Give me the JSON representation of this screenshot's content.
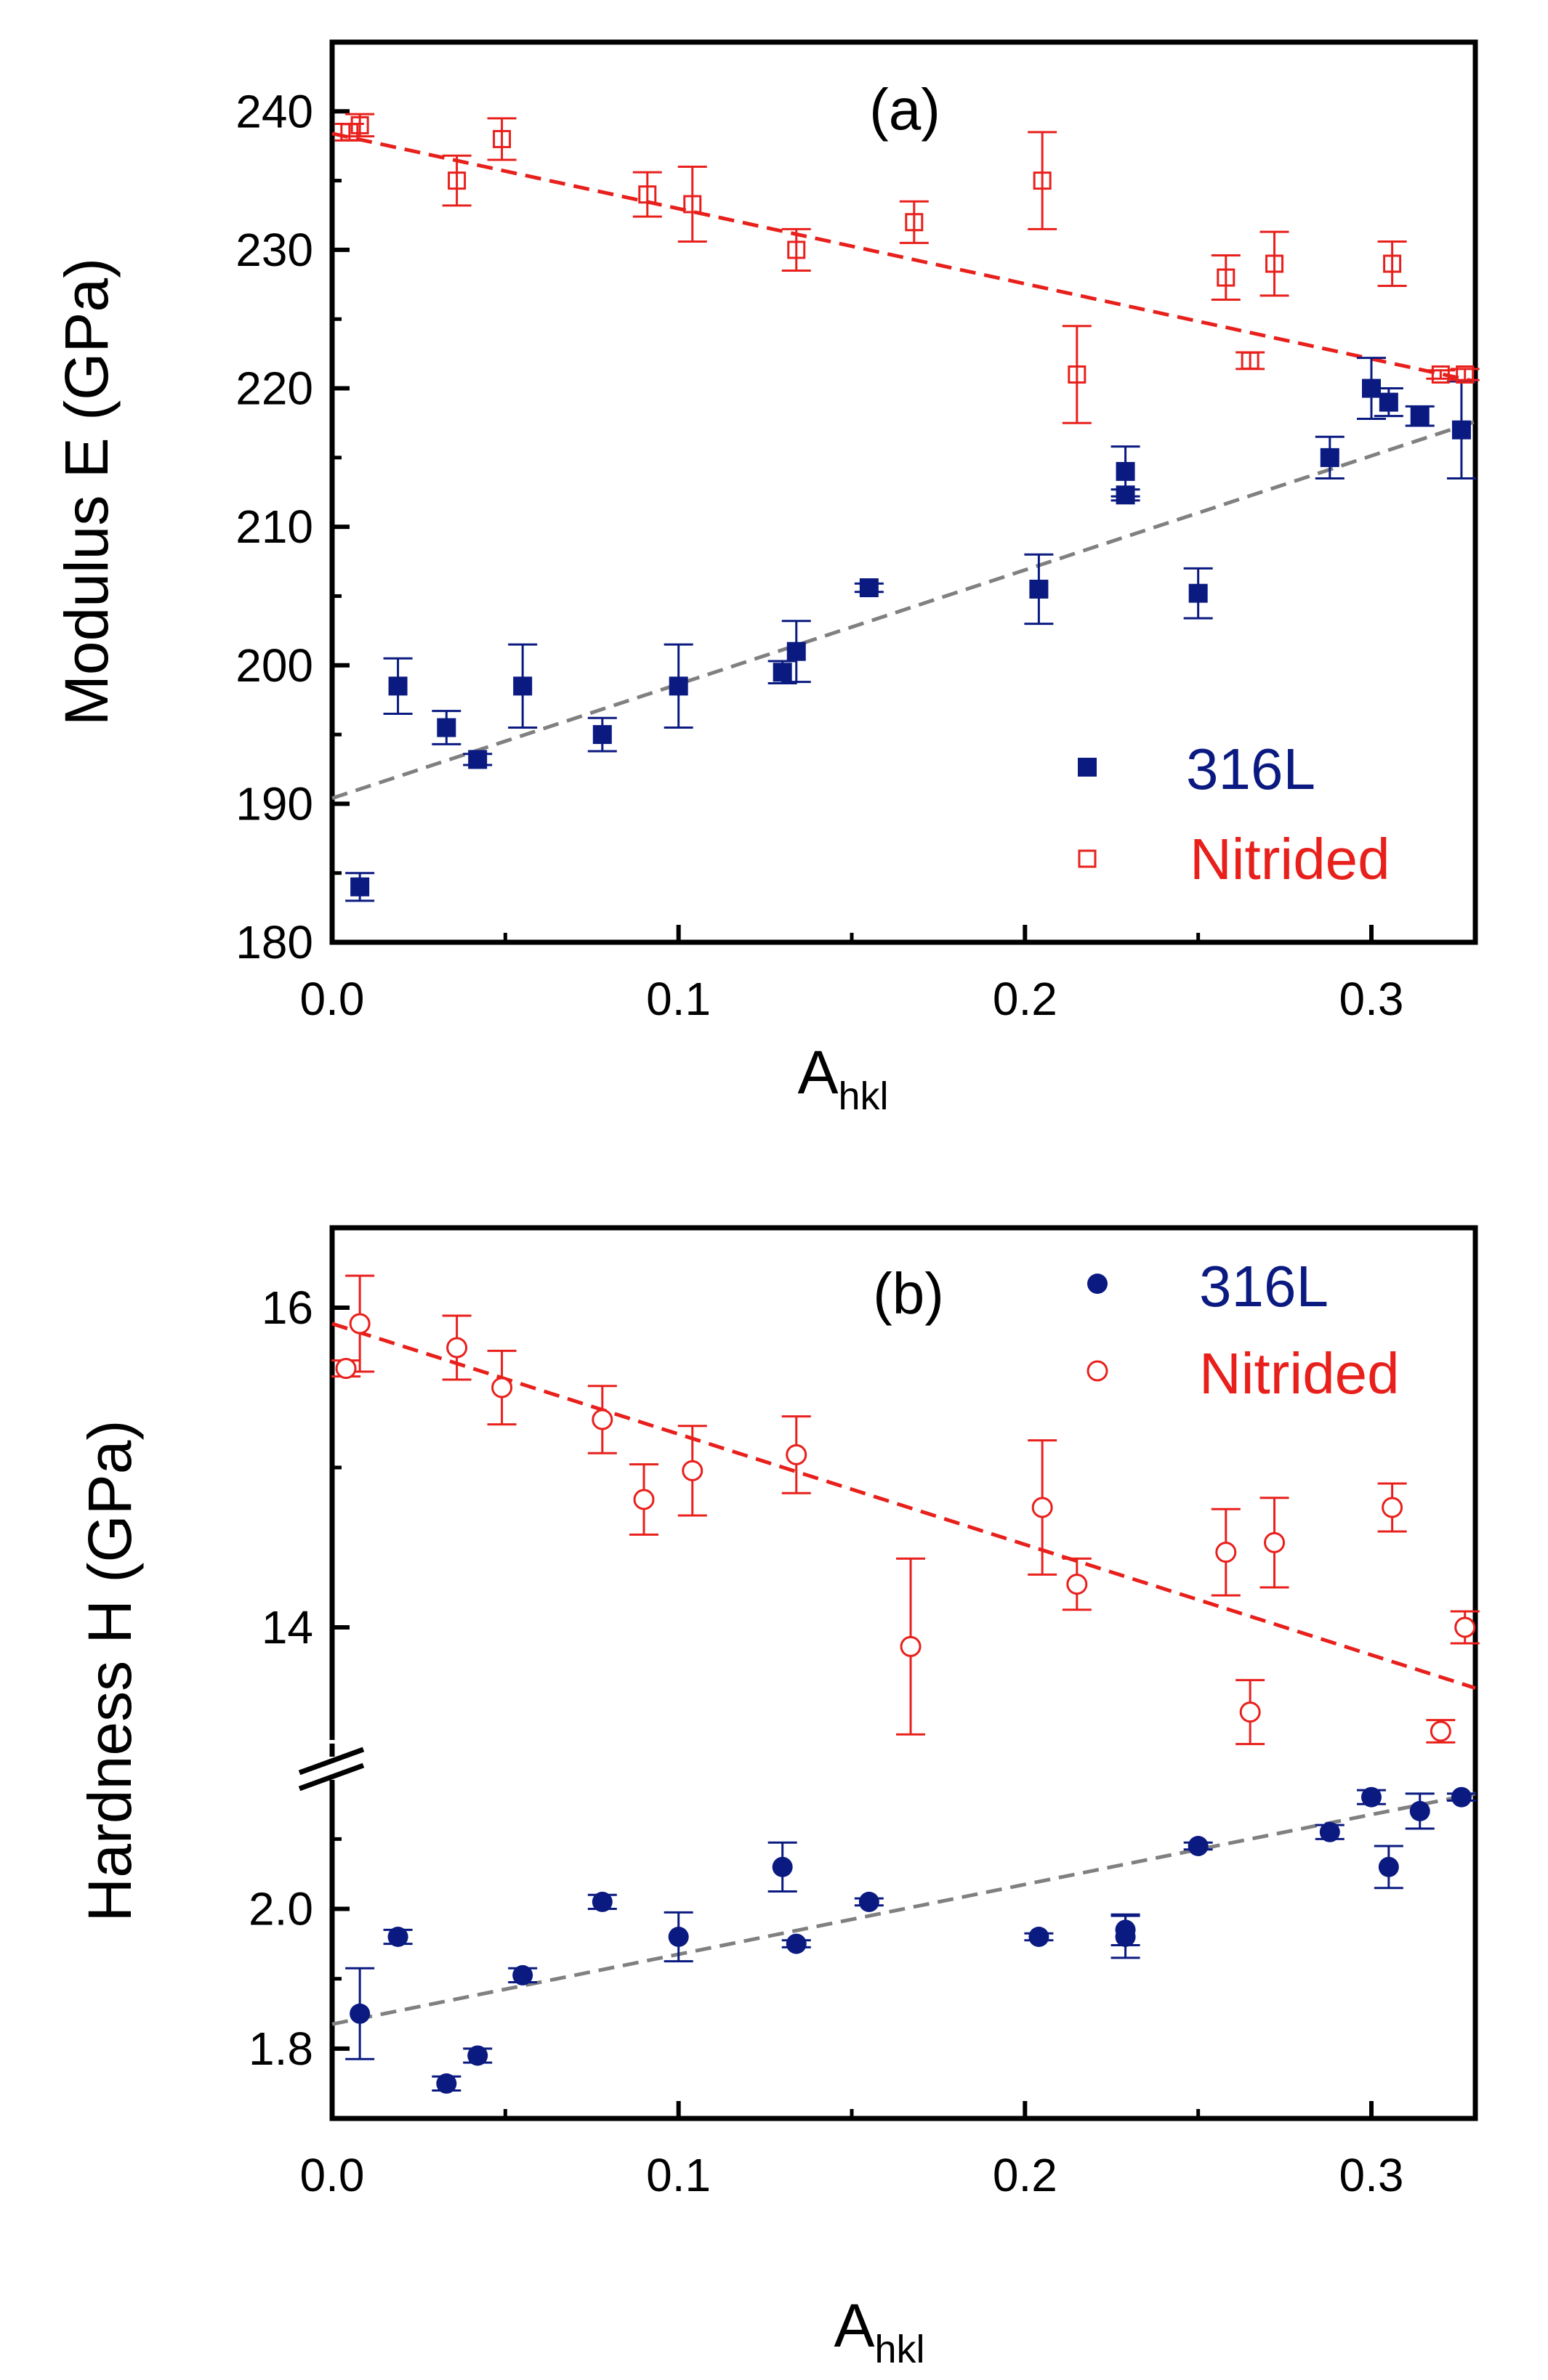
{
  "chart_data": [
    {
      "id": "a",
      "type": "scatter",
      "panel_label": "(a)",
      "ylabel": "Modulus E (GPa)",
      "xlabel": "A",
      "xlabel_sub": "hkl",
      "xlim": [
        0.0,
        0.33
      ],
      "ylim": [
        180,
        245
      ],
      "xticks": [
        0.0,
        0.1,
        0.2,
        0.3
      ],
      "xtick_labels": [
        "0.0",
        "0.1",
        "0.2",
        "0.3"
      ],
      "yticks": [
        180,
        190,
        200,
        210,
        220,
        230,
        240
      ],
      "ytick_labels": [
        "180",
        "190",
        "200",
        "210",
        "220",
        "230",
        "240"
      ],
      "legend_position": "bottom-right",
      "series": [
        {
          "name": "316L",
          "color": "#0a1a80",
          "marker": "filled-square",
          "x": [
            0.008,
            0.019,
            0.033,
            0.042,
            0.055,
            0.078,
            0.1,
            0.13,
            0.134,
            0.155,
            0.204,
            0.229,
            0.229,
            0.25,
            0.288,
            0.3,
            0.305,
            0.314,
            0.326
          ],
          "y": [
            184.0,
            198.5,
            195.5,
            193.2,
            198.5,
            195.0,
            198.5,
            199.5,
            201.0,
            205.6,
            205.5,
            214.0,
            212.3,
            205.2,
            215.0,
            220.0,
            219.0,
            218.0,
            217.0
          ],
          "err": [
            1.0,
            2.0,
            1.2,
            0.4,
            3.0,
            1.2,
            3.0,
            0.8,
            2.2,
            0.3,
            2.5,
            1.8,
            0.4,
            1.8,
            1.5,
            2.2,
            1.0,
            0.7,
            3.5
          ],
          "fit": {
            "x": [
              0.0,
              0.33
            ],
            "y": [
              190.4,
              217.6
            ],
            "color": "#808080"
          }
        },
        {
          "name": "Nitrided",
          "color": "#e8201c",
          "marker": "open-square",
          "x": [
            0.005,
            0.008,
            0.036,
            0.049,
            0.091,
            0.104,
            0.134,
            0.168,
            0.205,
            0.215,
            0.258,
            0.265,
            0.272,
            0.306,
            0.32,
            0.327
          ],
          "y": [
            238.5,
            239.0,
            235.0,
            238.0,
            234.0,
            233.3,
            230.0,
            232.0,
            235.0,
            221.0,
            228.0,
            222.0,
            229.0,
            229.0,
            221.0,
            221.0
          ],
          "err": [
            0.6,
            0.8,
            1.8,
            1.5,
            1.6,
            2.7,
            1.5,
            1.5,
            3.5,
            3.5,
            1.6,
            0.6,
            2.3,
            1.6,
            0.3,
            0.4
          ],
          "fit": {
            "x": [
              0.0,
              0.33
            ],
            "y": [
              238.4,
              220.5
            ],
            "color": "#e8201c"
          }
        }
      ]
    },
    {
      "id": "b",
      "type": "scatter",
      "panel_label": "(b)",
      "ylabel": "Hardness H (GPa)",
      "xlabel": "A",
      "xlabel_sub": "hkl",
      "xlim": [
        0.0,
        0.33
      ],
      "y_axis_break": true,
      "ylim_lower": [
        1.7,
        2.22
      ],
      "ylim_upper": [
        13.2,
        16.5
      ],
      "xticks": [
        0.0,
        0.1,
        0.2,
        0.3
      ],
      "xtick_labels": [
        "0.0",
        "0.1",
        "0.2",
        "0.3"
      ],
      "yticks_lower": [
        1.8,
        2.0
      ],
      "ytick_labels_lower": [
        "1.8",
        "2.0"
      ],
      "yticks_upper": [
        14,
        16
      ],
      "ytick_labels_upper": [
        "14",
        "16"
      ],
      "legend_position": "top-right",
      "series": [
        {
          "name": "316L",
          "color": "#0a1a80",
          "marker": "filled-circle",
          "segment": "lower",
          "x": [
            0.008,
            0.019,
            0.033,
            0.042,
            0.055,
            0.078,
            0.1,
            0.13,
            0.134,
            0.155,
            0.204,
            0.229,
            0.229,
            0.25,
            0.288,
            0.3,
            0.305,
            0.314,
            0.326
          ],
          "y": [
            1.85,
            1.96,
            1.75,
            1.79,
            1.905,
            2.01,
            1.96,
            2.06,
            1.95,
            2.01,
            1.96,
            1.97,
            1.96,
            2.09,
            2.11,
            2.16,
            2.06,
            2.14,
            2.16
          ],
          "err": [
            0.065,
            0.01,
            0.01,
            0.01,
            0.01,
            0.01,
            0.035,
            0.035,
            0.005,
            0.005,
            0.005,
            0.022,
            0.03,
            0.005,
            0.01,
            0.01,
            0.03,
            0.025,
            0.005
          ],
          "fit": {
            "x": [
              0.0,
              0.33
            ],
            "y": [
              1.835,
              2.165
            ],
            "color": "#808080"
          }
        },
        {
          "name": "Nitrided",
          "color": "#e8201c",
          "marker": "open-circle",
          "segment": "upper",
          "x": [
            0.004,
            0.008,
            0.036,
            0.049,
            0.078,
            0.09,
            0.104,
            0.134,
            0.167,
            0.205,
            0.215,
            0.258,
            0.272,
            0.306,
            0.265,
            0.32,
            0.327
          ],
          "y": [
            15.62,
            15.9,
            15.75,
            15.5,
            15.3,
            14.8,
            14.98,
            15.08,
            13.88,
            14.75,
            14.27,
            14.47,
            14.53,
            14.75,
            13.47,
            13.35,
            14.0
          ],
          "err": [
            0.05,
            0.3,
            0.2,
            0.23,
            0.21,
            0.22,
            0.28,
            0.24,
            0.55,
            0.42,
            0.16,
            0.27,
            0.28,
            0.15,
            0.2,
            0.07,
            0.1
          ],
          "fit": {
            "x": [
              0.0,
              0.33
            ],
            "y": [
              15.9,
              13.62
            ],
            "color": "#e8201c"
          }
        }
      ]
    }
  ]
}
